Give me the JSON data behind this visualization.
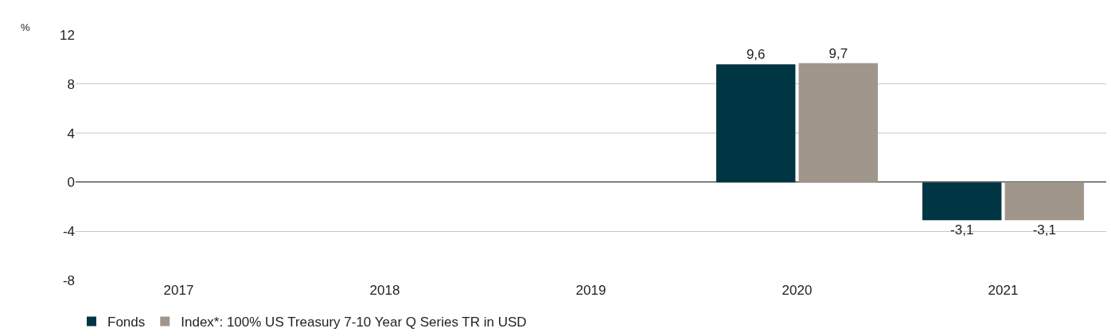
{
  "chart_data": {
    "type": "bar",
    "ylabel": "%",
    "categories": [
      "2017",
      "2018",
      "2019",
      "2020",
      "2021"
    ],
    "series": [
      {
        "name": "Fonds",
        "color": "#003643",
        "values": [
          null,
          null,
          null,
          9.6,
          -3.1
        ],
        "value_labels": [
          null,
          null,
          null,
          "9,6",
          "-3,1"
        ]
      },
      {
        "name": "Index*: 100% US Treasury 7-10 Year Q Series TR in USD",
        "color": "#a0968c",
        "values": [
          null,
          null,
          null,
          9.7,
          -3.1
        ],
        "value_labels": [
          null,
          null,
          null,
          "9,7",
          "-3,1"
        ]
      }
    ],
    "ylim": [
      -8,
      12
    ],
    "yticks": [
      -8,
      -4,
      0,
      4,
      8,
      12
    ],
    "grid": "y",
    "legend": "bottom left"
  }
}
